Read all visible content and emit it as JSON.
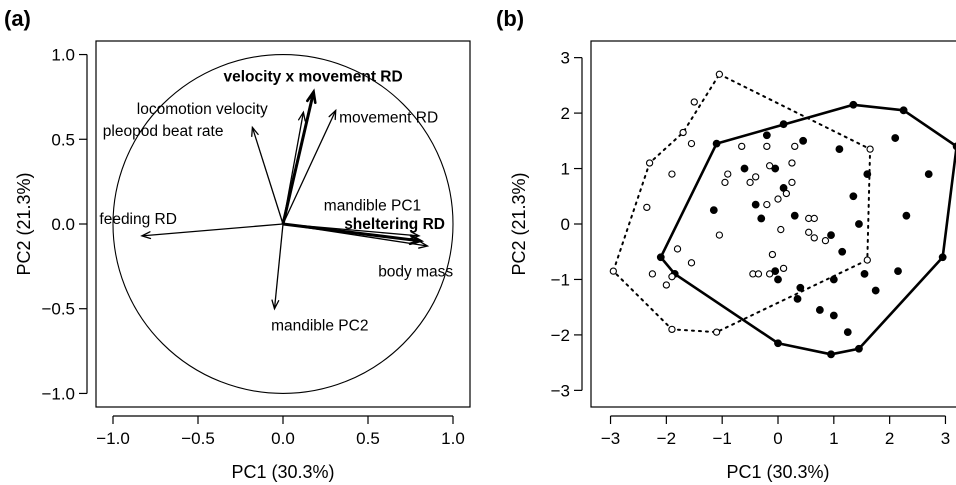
{
  "chart_data": [
    {
      "panel": "(a)",
      "type": "scatter",
      "subtype": "pca-loading-biplot",
      "xlabel": "PC1 (30.3%)",
      "ylabel": "PC2 (21.3%)",
      "xlim": [
        -1.1,
        1.1
      ],
      "ylim": [
        -1.08,
        1.08
      ],
      "xticks": [
        -1.0,
        -0.5,
        0.0,
        0.5,
        1.0
      ],
      "xtick_labels": [
        "−1.0",
        "−0.5",
        "0.0",
        "0.5",
        "1.0"
      ],
      "yticks": [
        -1.0,
        -0.5,
        0.0,
        0.5,
        1.0
      ],
      "ytick_labels": [
        "−1.0",
        "−0.5",
        "0.0",
        "0.5",
        "1.0"
      ],
      "unit_circle": true,
      "vectors": [
        {
          "label": "velocity x movement RD",
          "x": 0.18,
          "y": 0.78,
          "bold": true,
          "label_x": -0.35,
          "label_y": 0.87
        },
        {
          "label": "locomotion velocity",
          "x": 0.12,
          "y": 0.66,
          "bold": false,
          "label_x": -0.86,
          "label_y": 0.68
        },
        {
          "label": "pleopod beat rate",
          "x": -0.18,
          "y": 0.57,
          "bold": false,
          "label_x": -1.06,
          "label_y": 0.55
        },
        {
          "label": "movement RD",
          "x": 0.31,
          "y": 0.67,
          "bold": false,
          "label_x": 0.33,
          "label_y": 0.63
        },
        {
          "label": "mandible PC1",
          "x": 0.8,
          "y": -0.07,
          "bold": false,
          "label_x": 0.24,
          "label_y": 0.11
        },
        {
          "label": "sheltering RD",
          "x": 0.81,
          "y": -0.1,
          "bold": true,
          "label_x": 0.36,
          "label_y": 0.0
        },
        {
          "label": "body mass",
          "x": 0.85,
          "y": -0.13,
          "bold": false,
          "label_x": 0.56,
          "label_y": -0.28
        },
        {
          "label": "feeding RD",
          "x": -0.83,
          "y": -0.07,
          "bold": false,
          "label_x": -1.08,
          "label_y": 0.03
        },
        {
          "label": "mandible PC2",
          "x": -0.05,
          "y": -0.5,
          "bold": false,
          "label_x": -0.07,
          "label_y": -0.6
        }
      ]
    },
    {
      "panel": "(b)",
      "type": "scatter",
      "subtype": "pca-scores-with-convex-hulls",
      "xlabel": "PC1 (30.3%)",
      "ylabel": "PC2 (21.3%)",
      "xlim": [
        -3.35,
        3.35
      ],
      "ylim": [
        -3.3,
        3.3
      ],
      "xticks": [
        -3,
        -2,
        -1,
        0,
        1,
        2,
        3
      ],
      "xtick_labels": [
        "−3",
        "−2",
        "−1",
        "0",
        "1",
        "2",
        "3"
      ],
      "yticks": [
        -3,
        -2,
        -1,
        0,
        1,
        2,
        3
      ],
      "ytick_labels": [
        "−3",
        "−2",
        "−1",
        "0",
        "1",
        "2",
        "3"
      ],
      "series": [
        {
          "marker": "filled-circle",
          "hull": "solid",
          "points": [
            [
              -2.1,
              -0.6
            ],
            [
              -1.85,
              -0.9
            ],
            [
              -1.1,
              1.45
            ],
            [
              -0.6,
              1.0
            ],
            [
              -0.4,
              0.35
            ],
            [
              -0.2,
              1.6
            ],
            [
              0.1,
              1.8
            ],
            [
              -0.05,
              1.0
            ],
            [
              0.45,
              1.5
            ],
            [
              -0.3,
              0.1
            ],
            [
              0.1,
              0.65
            ],
            [
              1.1,
              1.35
            ],
            [
              1.35,
              0.5
            ],
            [
              1.6,
              0.9
            ],
            [
              2.1,
              1.55
            ],
            [
              2.7,
              0.9
            ],
            [
              2.3,
              0.15
            ],
            [
              0.95,
              -0.2
            ],
            [
              1.15,
              -0.5
            ],
            [
              1.45,
              0.0
            ],
            [
              1.0,
              -1.0
            ],
            [
              1.55,
              -0.9
            ],
            [
              1.75,
              -1.2
            ],
            [
              2.15,
              -0.85
            ],
            [
              0.35,
              -1.35
            ],
            [
              0.75,
              -1.55
            ],
            [
              1.0,
              -1.65
            ],
            [
              1.25,
              -1.95
            ],
            [
              0.4,
              -1.15
            ],
            [
              0.0,
              -1.0
            ],
            [
              -0.05,
              -0.85
            ],
            [
              0.95,
              -2.35
            ],
            [
              1.45,
              -2.25
            ],
            [
              0.0,
              -2.15
            ],
            [
              2.95,
              -0.6
            ],
            [
              2.25,
              2.05
            ],
            [
              1.35,
              2.15
            ],
            [
              3.2,
              1.4
            ],
            [
              -1.15,
              0.25
            ],
            [
              0.3,
              0.15
            ]
          ],
          "hull_points": [
            [
              -2.1,
              -0.6
            ],
            [
              -1.1,
              1.45
            ],
            [
              1.35,
              2.15
            ],
            [
              2.25,
              2.05
            ],
            [
              3.2,
              1.4
            ],
            [
              2.95,
              -0.6
            ],
            [
              1.45,
              -2.25
            ],
            [
              0.95,
              -2.35
            ],
            [
              0.0,
              -2.15
            ],
            [
              -1.85,
              -0.9
            ]
          ]
        },
        {
          "marker": "open-circle",
          "hull": "dotted",
          "points": [
            [
              -1.05,
              2.7
            ],
            [
              -1.5,
              2.2
            ],
            [
              -1.7,
              1.65
            ],
            [
              -1.9,
              0.9
            ],
            [
              -1.55,
              1.45
            ],
            [
              -0.9,
              0.9
            ],
            [
              -0.65,
              1.4
            ],
            [
              -0.4,
              0.85
            ],
            [
              -0.15,
              1.05
            ],
            [
              -0.2,
              1.4
            ],
            [
              0.25,
              1.1
            ],
            [
              0.25,
              0.75
            ],
            [
              0.3,
              1.4
            ],
            [
              0.0,
              0.45
            ],
            [
              -0.2,
              0.35
            ],
            [
              0.55,
              0.1
            ],
            [
              0.65,
              0.1
            ],
            [
              0.55,
              -0.15
            ],
            [
              0.65,
              -0.25
            ],
            [
              0.85,
              -0.3
            ],
            [
              -0.95,
              0.75
            ],
            [
              -0.5,
              0.75
            ],
            [
              0.05,
              -0.1
            ],
            [
              -0.1,
              -0.55
            ],
            [
              -0.45,
              -0.9
            ],
            [
              -0.35,
              -0.9
            ],
            [
              -0.15,
              -0.9
            ],
            [
              0.1,
              -0.8
            ],
            [
              -1.8,
              -0.45
            ],
            [
              -1.9,
              -0.95
            ],
            [
              -2.0,
              -1.1
            ],
            [
              -1.55,
              -0.7
            ],
            [
              -2.25,
              -0.9
            ],
            [
              -2.35,
              0.3
            ],
            [
              -2.3,
              1.1
            ],
            [
              -1.9,
              -1.9
            ],
            [
              -1.1,
              -1.95
            ],
            [
              1.65,
              1.35
            ],
            [
              1.6,
              -0.65
            ],
            [
              -2.95,
              -0.85
            ],
            [
              0.15,
              0.55
            ],
            [
              -1.05,
              -0.2
            ]
          ],
          "hull_points": [
            [
              -1.05,
              2.7
            ],
            [
              1.65,
              1.35
            ],
            [
              1.6,
              -0.65
            ],
            [
              -1.1,
              -1.95
            ],
            [
              -1.9,
              -1.9
            ],
            [
              -2.95,
              -0.85
            ],
            [
              -2.3,
              1.1
            ],
            [
              -1.7,
              1.65
            ]
          ]
        }
      ]
    }
  ]
}
